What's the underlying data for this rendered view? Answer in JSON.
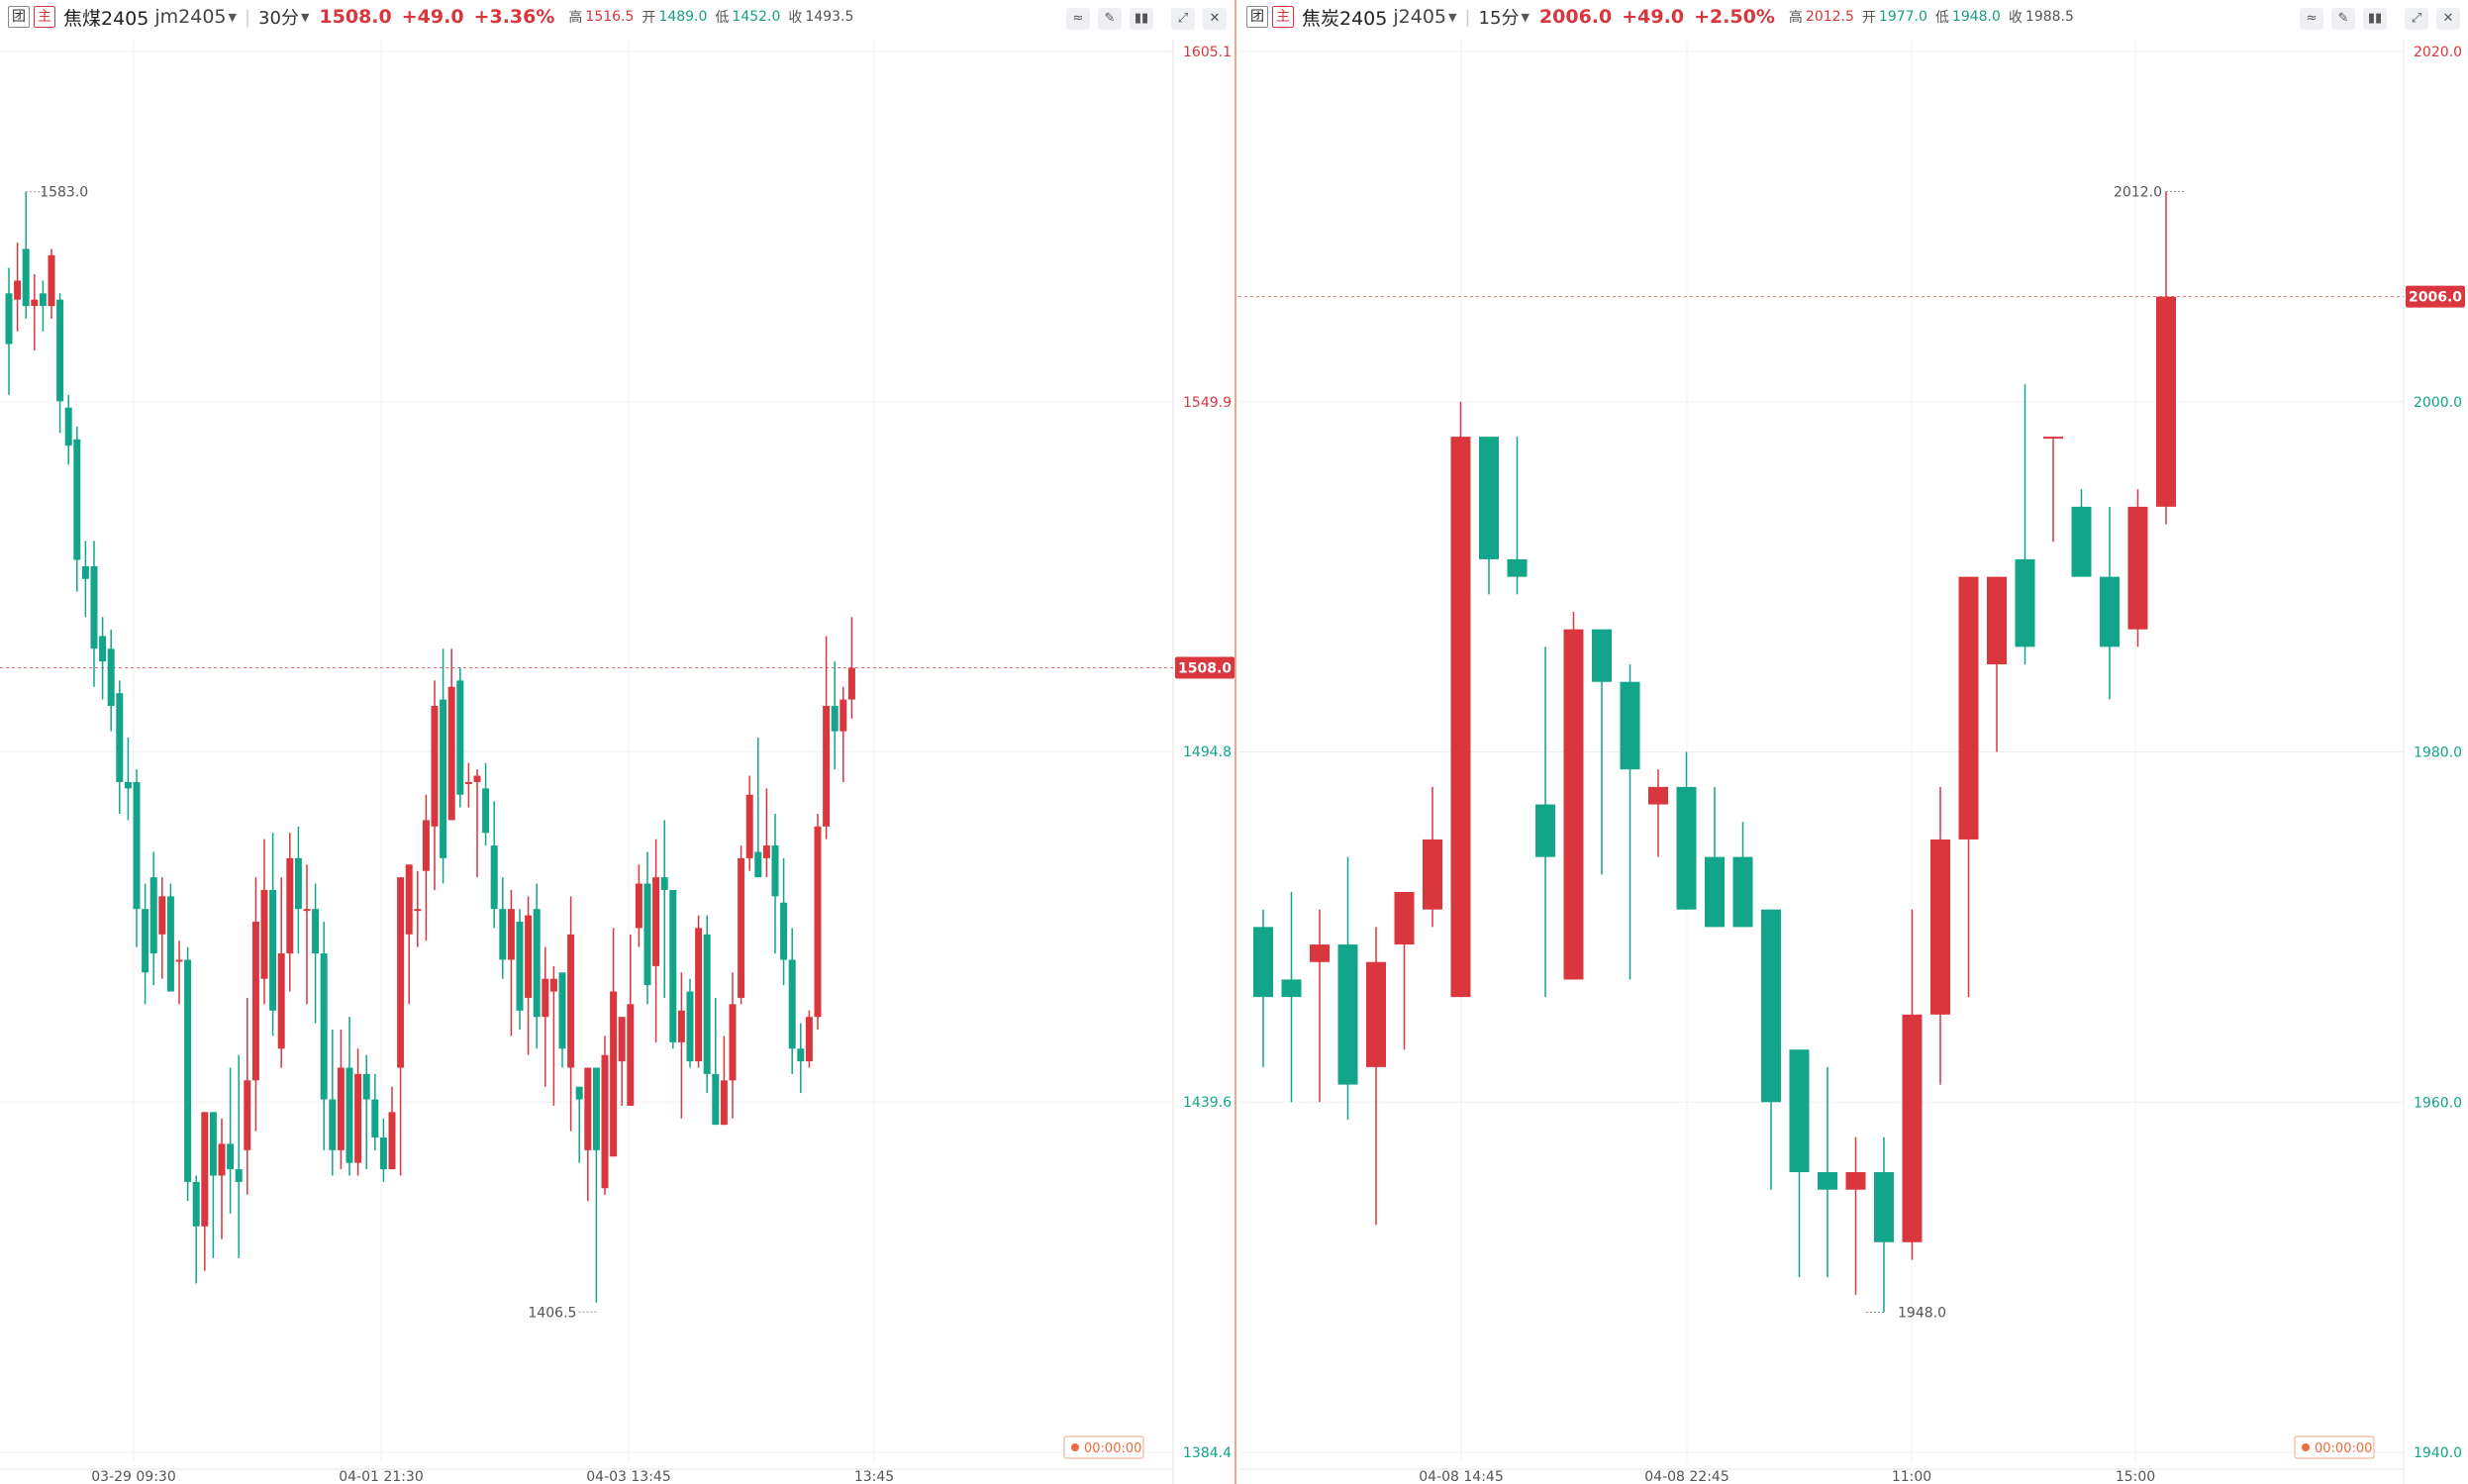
{
  "panels": [
    {
      "badge1": "团",
      "badge2": "主",
      "name": "焦煤2405",
      "code": "jm2405",
      "period": "30分",
      "price": "1508.0",
      "change": "+49.0",
      "change_pct": "+3.36%",
      "high_label": "高",
      "high": "1516.5",
      "open_label": "开",
      "open": "1489.0",
      "low_label": "低",
      "low": "1452.0",
      "close_label": "收",
      "close": "1493.5",
      "axis_ticks": [
        "1605.1",
        "1549.9",
        "1494.8",
        "1439.6",
        "1384.4"
      ],
      "current_price_tag": "1508.0",
      "time_ticks": [
        "03-29 09:30",
        "04-01 21:30",
        "04-03 13:45",
        "13:45"
      ],
      "annotations": {
        "high": "1583.0",
        "low": "1406.5"
      },
      "countdown": "00:00:00"
    },
    {
      "badge1": "团",
      "badge2": "主",
      "name": "焦炭2405",
      "code": "j2405",
      "period": "15分",
      "price": "2006.0",
      "change": "+49.0",
      "change_pct": "+2.50%",
      "high_label": "高",
      "high": "2012.5",
      "open_label": "开",
      "open": "1977.0",
      "low_label": "低",
      "low": "1948.0",
      "close_label": "收",
      "close": "1988.5",
      "axis_ticks": [
        "2020.0",
        "2000.0",
        "1980.0",
        "1960.0",
        "1940.0"
      ],
      "current_price_tag": "2006.0",
      "time_ticks": [
        "04-08 14:45",
        "04-08 22:45",
        "11:00",
        "15:00"
      ],
      "annotations": {
        "high": "2012.0",
        "low": "1948.0"
      },
      "countdown": "00:00:00"
    }
  ],
  "colors": {
    "up": "#d9363e",
    "down": "#12a589",
    "grid": "#f0f0f0",
    "accent_border": "#f2a58a"
  },
  "icons": [
    "line-tool-icon",
    "draw-tool-icon",
    "footprint-icon",
    "expand-icon",
    "close-icon"
  ],
  "chart_data": [
    {
      "type": "candlestick",
      "symbol": "jm2405",
      "x_tick_labels": [
        "03-29 09:30",
        "04-01 21:30",
        "04-03 13:45",
        "13:45"
      ],
      "ylim": [
        1384.4,
        1605.1
      ],
      "annotated_high": 1583.0,
      "annotated_low": 1406.5,
      "last_price": 1508.0,
      "candles": [
        [
          1567,
          1559,
          1571,
          1551
        ],
        [
          1566,
          1569,
          1575,
          1561
        ],
        [
          1574,
          1565,
          1583,
          1563
        ],
        [
          1565,
          1566,
          1570,
          1558
        ],
        [
          1567,
          1565,
          1569,
          1561
        ],
        [
          1565,
          1573,
          1574,
          1563
        ],
        [
          1566,
          1550,
          1567,
          1545
        ],
        [
          1549,
          1543,
          1551,
          1540
        ],
        [
          1544,
          1525,
          1546,
          1520
        ],
        [
          1524,
          1522,
          1528,
          1516
        ],
        [
          1524,
          1511,
          1528,
          1505
        ],
        [
          1513,
          1509,
          1516,
          1503
        ],
        [
          1511,
          1502,
          1514,
          1498
        ],
        [
          1504,
          1490,
          1506,
          1485
        ],
        [
          1490,
          1489,
          1497,
          1484
        ],
        [
          1490,
          1470,
          1492,
          1464
        ],
        [
          1470,
          1460,
          1474,
          1455
        ],
        [
          1475,
          1463,
          1479,
          1458
        ],
        [
          1466,
          1472,
          1475,
          1459
        ],
        [
          1472,
          1457,
          1474,
          1457
        ],
        [
          1462,
          1462,
          1465,
          1455
        ],
        [
          1462,
          1427,
          1464,
          1424
        ],
        [
          1427,
          1420,
          1428,
          1411
        ],
        [
          1420,
          1438,
          1435,
          1413
        ],
        [
          1438,
          1428,
          1433,
          1415
        ],
        [
          1428,
          1433,
          1437,
          1418
        ],
        [
          1433,
          1429,
          1445,
          1422
        ],
        [
          1429,
          1427,
          1447,
          1415
        ],
        [
          1432,
          1443,
          1456,
          1425
        ],
        [
          1443,
          1468,
          1475,
          1435
        ],
        [
          1459,
          1473,
          1481,
          1455
        ],
        [
          1473,
          1454,
          1482,
          1450
        ],
        [
          1448,
          1463,
          1475,
          1445
        ],
        [
          1463,
          1478,
          1482,
          1457
        ],
        [
          1478,
          1470,
          1483,
          1463
        ],
        [
          1470,
          1470,
          1477,
          1455
        ],
        [
          1470,
          1463,
          1474,
          1452
        ],
        [
          1463,
          1440,
          1468,
          1432
        ],
        [
          1440,
          1432,
          1451,
          1428
        ],
        [
          1432,
          1445,
          1451,
          1429
        ],
        [
          1445,
          1430,
          1453,
          1428
        ],
        [
          1430,
          1444,
          1448,
          1428
        ],
        [
          1444,
          1440,
          1447,
          1429
        ],
        [
          1440,
          1434,
          1444,
          1432
        ],
        [
          1434,
          1429,
          1437,
          1427
        ],
        [
          1429,
          1438,
          1442,
          1429
        ],
        [
          1445,
          1475,
          1475,
          1428
        ],
        [
          1466,
          1477,
          1477,
          1455
        ],
        [
          1470,
          1470,
          1476,
          1464
        ],
        [
          1476,
          1484,
          1488,
          1465
        ],
        [
          1483,
          1502,
          1506,
          1473
        ],
        [
          1503,
          1478,
          1511,
          1474
        ],
        [
          1484,
          1505,
          1511,
          1484
        ],
        [
          1506,
          1488,
          1508,
          1486
        ],
        [
          1490,
          1490,
          1493,
          1486
        ],
        [
          1490,
          1491,
          1492,
          1475
        ],
        [
          1489,
          1482,
          1493,
          1480
        ],
        [
          1480,
          1470,
          1487,
          1467
        ],
        [
          1470,
          1462,
          1475,
          1459
        ],
        [
          1462,
          1470,
          1473,
          1450
        ],
        [
          1468,
          1454,
          1470,
          1451
        ],
        [
          1456,
          1469,
          1472,
          1447
        ],
        [
          1470,
          1453,
          1474,
          1448
        ],
        [
          1453,
          1459,
          1464,
          1442
        ],
        [
          1457,
          1459,
          1461,
          1439
        ],
        [
          1460,
          1448,
          1458,
          1445
        ],
        [
          1445,
          1466,
          1472,
          1435
        ],
        [
          1442,
          1440,
          1437,
          1430
        ],
        [
          1432,
          1445,
          1444,
          1424
        ],
        [
          1445,
          1432,
          1432,
          1408
        ],
        [
          1426,
          1447,
          1450,
          1425
        ],
        [
          1431,
          1457,
          1467,
          1451
        ],
        [
          1446,
          1453,
          1448,
          1439
        ],
        [
          1439,
          1455,
          1466,
          1454
        ],
        [
          1467,
          1474,
          1477,
          1464
        ],
        [
          1474,
          1458,
          1479,
          1455
        ],
        [
          1461,
          1475,
          1481,
          1449
        ],
        [
          1475,
          1473,
          1484,
          1456
        ],
        [
          1473,
          1449,
          1473,
          1448
        ],
        [
          1449,
          1454,
          1460,
          1437
        ],
        [
          1457,
          1446,
          1459,
          1445
        ],
        [
          1446,
          1467,
          1469,
          1445
        ],
        [
          1466,
          1444,
          1469,
          1441
        ],
        [
          1444,
          1436,
          1456,
          1436
        ],
        [
          1436,
          1443,
          1450,
          1436
        ],
        [
          1443,
          1455,
          1460,
          1437
        ],
        [
          1456,
          1478,
          1480,
          1455
        ],
        [
          1478,
          1488,
          1491,
          1476
        ],
        [
          1479,
          1475,
          1497,
          1475
        ],
        [
          1478,
          1480,
          1489,
          1475
        ],
        [
          1480,
          1472,
          1485,
          1463
        ],
        [
          1471,
          1462,
          1478,
          1458
        ],
        [
          1462,
          1448,
          1467,
          1444
        ],
        [
          1448,
          1446,
          1452,
          1441
        ],
        [
          1446,
          1453,
          1454,
          1445
        ],
        [
          1453,
          1483,
          1485,
          1451
        ],
        [
          1483,
          1502,
          1513,
          1481
        ],
        [
          1502,
          1498,
          1509,
          1492
        ],
        [
          1498,
          1503,
          1505,
          1490
        ],
        [
          1503,
          1508,
          1516,
          1500
        ]
      ]
    },
    {
      "type": "candlestick",
      "symbol": "j2405",
      "x_tick_labels": [
        "04-08 14:45",
        "04-08 22:45",
        "11:00",
        "15:00"
      ],
      "ylim": [
        1940.0,
        2020.0
      ],
      "annotated_high": 2012.0,
      "annotated_low": 1948.0,
      "last_price": 2006.0,
      "candles": [
        [
          1970,
          1966,
          1971,
          1962
        ],
        [
          1967,
          1966,
          1972,
          1960
        ],
        [
          1968,
          1969,
          1971,
          1960
        ],
        [
          1969,
          1961,
          1974,
          1959
        ],
        [
          1962,
          1968,
          1970,
          1953
        ],
        [
          1969,
          1972,
          1969,
          1963
        ],
        [
          1971,
          1975,
          1978,
          1970
        ],
        [
          1966,
          1998,
          2000,
          1966
        ],
        [
          1998,
          1991,
          1998,
          1989
        ],
        [
          1991,
          1990,
          1998,
          1989
        ],
        [
          1977,
          1974,
          1986,
          1966
        ],
        [
          1967,
          1987,
          1988,
          1974
        ],
        [
          1987,
          1984,
          1986,
          1973
        ],
        [
          1984,
          1979,
          1985,
          1967
        ],
        [
          1977,
          1978,
          1979,
          1974
        ],
        [
          1978,
          1971,
          1980,
          1971
        ],
        [
          1974,
          1970,
          1978,
          1970
        ],
        [
          1974,
          1970,
          1976,
          1970
        ],
        [
          1971,
          1960,
          1971,
          1955
        ],
        [
          1963,
          1956,
          1963,
          1950
        ],
        [
          1956,
          1955,
          1962,
          1950
        ],
        [
          1955,
          1956,
          1958,
          1949
        ],
        [
          1956,
          1952,
          1958,
          1948
        ],
        [
          1952,
          1965,
          1971,
          1951
        ],
        [
          1965,
          1975,
          1978,
          1961
        ],
        [
          1975,
          1990,
          1990,
          1966
        ],
        [
          1985,
          1990,
          1989,
          1980
        ],
        [
          1991,
          1986,
          2001,
          1985
        ],
        [
          1998,
          1998,
          1998,
          1992
        ],
        [
          1994,
          1990,
          1995,
          1991
        ],
        [
          1990,
          1986,
          1994,
          1983
        ],
        [
          1987,
          1994,
          1995,
          1986
        ],
        [
          1994,
          2006,
          2012,
          1993
        ]
      ]
    }
  ]
}
